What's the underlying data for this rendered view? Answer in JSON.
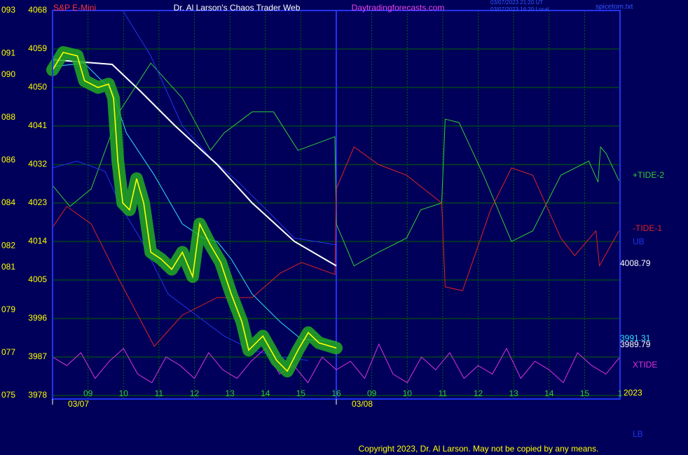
{
  "chart_data": {
    "type": "line",
    "symbol": "S&P E-Mini",
    "title": "Dr. Al Larson's Chaos Trader Web",
    "site": "Daytradingforecasts.com",
    "timestamps": [
      "03/07/2023 21:20 UT",
      "03/07/2023 16:20 Local"
    ],
    "file": "spicetom.txt",
    "year": "2023",
    "copyright": "Copyright 2023, Dr. Al Larson. May not be copied by any means.",
    "xlim": [
      0,
      16
    ],
    "ylim": [
      3978,
      4068
    ],
    "y2lim": [
      75,
      93
    ],
    "grid": true,
    "yticks": [
      3978,
      3987,
      3996,
      4005,
      4014,
      4023,
      4032,
      4041,
      4050,
      4059,
      4068
    ],
    "y2ticks": [
      {
        "value": 75,
        "label": "075"
      },
      {
        "value": 77,
        "label": "077"
      },
      {
        "value": 79,
        "label": "079"
      },
      {
        "value": 81,
        "label": "081"
      },
      {
        "value": 82,
        "label": "082"
      },
      {
        "value": 84,
        "label": "084"
      },
      {
        "value": 86,
        "label": "086"
      },
      {
        "value": 88,
        "label": "088"
      },
      {
        "value": 90,
        "label": "090"
      },
      {
        "value": 91,
        "label": "091"
      },
      {
        "value": 93,
        "label": "093"
      }
    ],
    "xticks": [
      {
        "value": 1,
        "label": "09"
      },
      {
        "value": 2,
        "label": "10"
      },
      {
        "value": 3,
        "label": "11"
      },
      {
        "value": 4,
        "label": "12"
      },
      {
        "value": 5,
        "label": "13"
      },
      {
        "value": 6,
        "label": "14"
      },
      {
        "value": 7,
        "label": "15"
      },
      {
        "value": 8,
        "label": "16"
      },
      {
        "value": 9,
        "label": "09"
      },
      {
        "value": 10,
        "label": "10"
      },
      {
        "value": 11,
        "label": "11"
      },
      {
        "value": 12,
        "label": "12"
      },
      {
        "value": 13,
        "label": "13"
      },
      {
        "value": 14,
        "label": "14"
      },
      {
        "value": 15,
        "label": "15"
      },
      {
        "value": 16,
        "label": "1"
      }
    ],
    "date_ticks": [
      {
        "value": 0,
        "label": "03/07"
      },
      {
        "value": 8,
        "label": "03/08"
      }
    ],
    "series": [
      {
        "color": "#ffff00",
        "glow": "#22aa22",
        "x": [
          0,
          0.3,
          0.7,
          0.9,
          1.28,
          1.58,
          1.72,
          1.84,
          1.98,
          2.17,
          2.37,
          2.57,
          2.77,
          3.06,
          3.36,
          3.66,
          3.95,
          4.15,
          4.45,
          4.74,
          5.04,
          5.34,
          5.53,
          5.93,
          6.32,
          6.62,
          6.92,
          7.21,
          7.51,
          8
        ],
        "values": [
          4054.1,
          4058.2,
          4057.4,
          4051.6,
          4050,
          4050.8,
          4047.5,
          4032.8,
          4023,
          4021.4,
          4028.7,
          4023,
          4011.5,
          4009.9,
          4007.5,
          4011.5,
          4005.8,
          4018.1,
          4013.2,
          4009.1,
          4001.7,
          3995.2,
          3988.6,
          3991.9,
          3986.2,
          3983.7,
          3988.6,
          3992.7,
          3990.3,
          3989.1
        ],
        "last_value": 3989.79
      },
      {
        "color": "#33ddff",
        "x": [
          0,
          0.89,
          1.68,
          2.08,
          2.87,
          3.66,
          4.25,
          4.64,
          5.04,
          5.63,
          6.42,
          7.02,
          8
        ],
        "values": [
          4054.9,
          4055.7,
          4049.2,
          4039.4,
          4029.5,
          4018.1,
          4014.8,
          4014,
          4009.9,
          4001.7,
          3995.2,
          3991.1,
          3990.6
        ],
        "last_value": 3991.31
      },
      {
        "color": "#ffffff",
        "x": [
          0,
          1.68,
          2.47,
          3.46,
          4.64,
          5.63,
          6.82,
          8
        ],
        "values": [
          4056.5,
          4055.4,
          4049.2,
          4041,
          4032,
          4023,
          4014,
          4008.3
        ],
        "last_value": 4008.79
      },
      {
        "name": "+TIDE-2",
        "color": "#33cc33",
        "x": [
          0,
          0.49,
          1.09,
          1.88,
          2.77,
          3.66,
          4.45,
          4.84,
          5.63,
          6.23,
          6.92,
          7.96,
          8,
          8.5,
          9.19,
          9.98,
          10.38,
          10.97,
          11.07,
          11.46,
          12.15,
          12.94,
          13.54,
          14.33,
          15.12,
          15.38,
          15.45,
          15.61,
          15.97
        ],
        "values": [
          4027.1,
          4022.2,
          4026.3,
          4044.3,
          4055.7,
          4047.5,
          4035.3,
          4039.4,
          4044.3,
          4044.3,
          4035.3,
          4038.5,
          4018.1,
          4008.3,
          4011.5,
          4014.8,
          4021.4,
          4023,
          4042.6,
          4041.8,
          4029.5,
          4014,
          4016.5,
          4029.5,
          4032.8,
          4027.9,
          4036.1,
          4034.5,
          4028.2
        ]
      },
      {
        "name": "-TIDE-1",
        "color": "#dd2222",
        "x": [
          0,
          0.4,
          1.09,
          1.88,
          2.87,
          3.66,
          4.64,
          5.63,
          6.42,
          7.02,
          7.96,
          8,
          8.5,
          9.19,
          9.98,
          10.97,
          11.07,
          11.56,
          12.35,
          12.94,
          13.54,
          14.33,
          14.72,
          15.32,
          15.42,
          15.97
        ],
        "values": [
          4017.3,
          4022.2,
          4018.1,
          4005,
          3989.5,
          3996.8,
          4000.9,
          4000.9,
          4006.6,
          4009.1,
          4006.3,
          4026.3,
          4036.1,
          4032,
          4029.5,
          4023,
          4003.4,
          4002.5,
          4021.4,
          4031.2,
          4029.5,
          4014.8,
          4010.7,
          4016.5,
          4008.3,
          4016.5
        ]
      },
      {
        "name": "UB",
        "color": "#2233ee",
        "x": [
          1.98,
          2.77,
          3.66,
          4.45,
          5.24,
          6.03,
          6.82,
          8
        ],
        "values": [
          4068,
          4057.4,
          4041,
          4033.6,
          4027.9,
          4021.4,
          4014.8,
          4013.2
        ]
      },
      {
        "name": "XTIDE",
        "color": "#dd33dd",
        "x": [
          0,
          0.4,
          0.8,
          1.2,
          1.6,
          2,
          2.4,
          2.8,
          3.2,
          3.6,
          4,
          4.4,
          4.8,
          5.2,
          5.6,
          6,
          6.4,
          6.8,
          7.2,
          7.6,
          8,
          8.4,
          8.8,
          9.2,
          9.6,
          10,
          10.4,
          10.8,
          11.2,
          11.6,
          12,
          12.4,
          12.8,
          13.2,
          13.6,
          14,
          14.4,
          14.8,
          15.2,
          15.6,
          16
        ],
        "values": [
          3987,
          3985,
          3988,
          3982,
          3986,
          3989,
          3983,
          3981,
          3987,
          3985,
          3982,
          3988,
          3984,
          3982,
          3986,
          3989,
          3983,
          3985,
          3981,
          3987,
          3984,
          3986,
          3982,
          3990,
          3983,
          3981,
          3987,
          3984,
          3988,
          3982,
          3985,
          3983,
          3989,
          3982,
          3986,
          3984,
          3981,
          3988,
          3985,
          3983,
          3987
        ]
      },
      {
        "name": "LB",
        "color": "#2233ee",
        "x": [
          0,
          0.69,
          1.48,
          1.98,
          2.47,
          3.26,
          4.05,
          4.84,
          5.63,
          6.42,
          7.21
        ],
        "values": [
          4031.2,
          4032.8,
          4030.4,
          4021.4,
          4014.8,
          4001.7,
          3996.8,
          3991.9,
          3988.6,
          3987,
          3986.2
        ]
      }
    ]
  }
}
